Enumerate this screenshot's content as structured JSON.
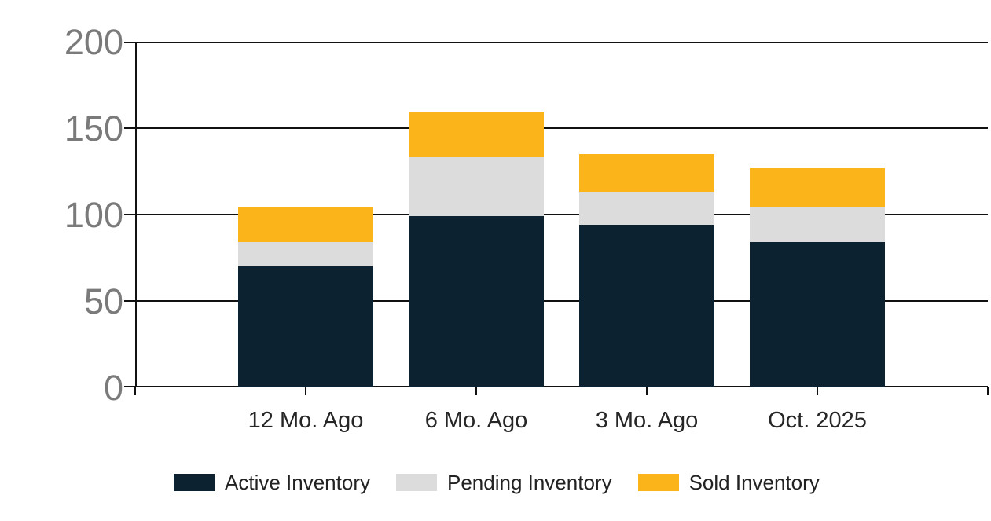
{
  "chart_data": {
    "type": "bar",
    "stacked": true,
    "categories": [
      "12 Mo. Ago",
      "6 Mo. Ago",
      "3 Mo. Ago",
      "Oct. 2025"
    ],
    "series": [
      {
        "name": "Active Inventory",
        "color": "#0d2230",
        "values": [
          70,
          99,
          94,
          84
        ]
      },
      {
        "name": "Pending Inventory",
        "color": "#dcdcdc",
        "values": [
          14,
          34,
          19,
          20
        ]
      },
      {
        "name": "Sold Inventory",
        "color": "#fbb41a",
        "values": [
          20,
          26,
          22,
          23
        ]
      }
    ],
    "stack_totals": [
      104,
      159,
      135,
      127
    ],
    "title": "",
    "xlabel": "",
    "ylabel": "",
    "ylim": [
      0,
      200
    ],
    "yticks": [
      0,
      50,
      100,
      150,
      200
    ],
    "ytick_labels": [
      "0",
      "50",
      "100",
      "150",
      "200"
    ],
    "grid": true,
    "legend_position": "bottom"
  },
  "colors": {
    "background": "#ffffff",
    "gridline": "#111111",
    "axis": "#111111",
    "y_label_text": "#7a7a7a",
    "x_label_text": "#262626",
    "legend_text": "#222222"
  }
}
